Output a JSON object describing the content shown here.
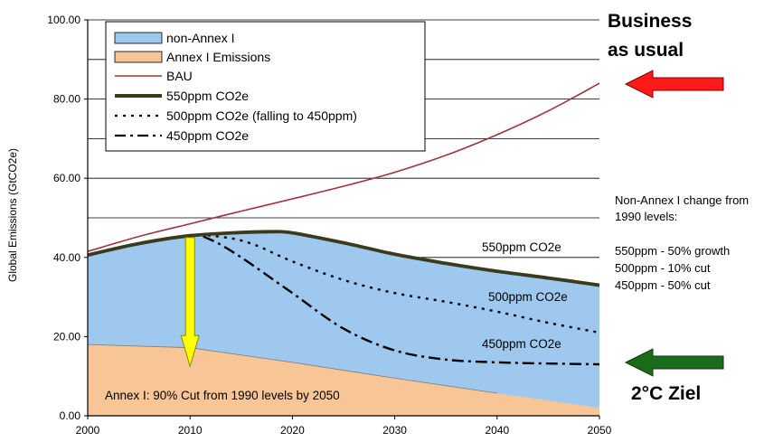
{
  "chart_data": {
    "type": "area",
    "title": "",
    "xlabel": "",
    "ylabel": "Global Emissions (GtCO2e)",
    "xlim": [
      2000,
      2050
    ],
    "ylim": [
      0,
      100
    ],
    "x_ticks": [
      "2000",
      "2010",
      "2020",
      "2030",
      "2040",
      "2050"
    ],
    "y_ticks": [
      "0.00",
      "20.00",
      "40.00",
      "60.00",
      "80.00",
      "100.00"
    ],
    "y_tick_values": [
      0,
      20,
      40,
      60,
      80,
      100
    ],
    "gridlines_y": [
      0,
      10,
      20,
      30,
      40,
      50,
      60,
      70,
      80,
      90,
      100
    ],
    "grid": true,
    "legend_position": "top-left",
    "series": [
      {
        "name": "Annex I Emissions",
        "kind": "area",
        "color": "#f8c596",
        "x": [
          2000,
          2010,
          2020,
          2030,
          2040,
          2050
        ],
        "y": [
          18,
          17.2,
          13.5,
          9.5,
          5.7,
          2
        ]
      },
      {
        "name": "non-Annex I",
        "kind": "area",
        "color": "#9ec8ee",
        "x": [
          2000,
          2005,
          2010,
          2015,
          2018,
          2020,
          2025,
          2030,
          2035,
          2040,
          2045,
          2050
        ],
        "y": [
          40.6,
          43.5,
          45.5,
          46.3,
          46.5,
          46.2,
          43.7,
          40.8,
          38.5,
          36.5,
          34.8,
          33
        ]
      },
      {
        "name": "BAU",
        "kind": "line",
        "color": "#a0323c",
        "x": [
          2000,
          2005,
          2010,
          2015,
          2020,
          2025,
          2030,
          2035,
          2040,
          2045,
          2050
        ],
        "y": [
          41.5,
          45.3,
          48.5,
          51.7,
          54.8,
          58,
          61.5,
          65.8,
          71,
          77,
          84
        ]
      },
      {
        "name": "550ppm CO2e",
        "kind": "line",
        "color": "#3a3a1c",
        "x": [
          2000,
          2005,
          2010,
          2015,
          2018,
          2020,
          2025,
          2030,
          2035,
          2040,
          2045,
          2050
        ],
        "y": [
          40.6,
          43.5,
          45.5,
          46.3,
          46.5,
          46.2,
          43.7,
          40.8,
          38.5,
          36.5,
          34.8,
          33
        ]
      },
      {
        "name": "500ppm CO2e (falling to 450ppm)",
        "kind": "line",
        "color": "#000000",
        "x": [
          2000,
          2005,
          2010,
          2013,
          2016,
          2020,
          2025,
          2030,
          2035,
          2040,
          2045,
          2050
        ],
        "y": [
          40.6,
          43.5,
          45.5,
          45.2,
          43.5,
          39,
          34.3,
          31,
          28.8,
          26.3,
          23.5,
          21
        ]
      },
      {
        "name": "450ppm CO2e",
        "kind": "line",
        "color": "#000000",
        "x": [
          2000,
          2005,
          2010,
          2012,
          2015,
          2020,
          2025,
          2030,
          2035,
          2040,
          2045,
          2050
        ],
        "y": [
          40.6,
          43.5,
          45.5,
          44.5,
          40,
          31,
          22,
          16.5,
          14.2,
          13.5,
          13.2,
          13
        ]
      }
    ],
    "legend_entries": [
      "non-Annex I",
      "Annex I Emissions",
      "BAU",
      "550ppm CO2e",
      "500ppm CO2e (falling to 450ppm)",
      "450ppm CO2e"
    ],
    "arrow_down": {
      "x": 2010,
      "from": 45.5,
      "to": 12.5,
      "color": "#ffff00"
    },
    "annotations": {
      "label_550": "550ppm CO2e",
      "label_500": "500ppm CO2e",
      "label_450": "450ppm CO2e",
      "annex_note": "Annex I: 90% Cut from 1990 levels by 2050",
      "side_note_line1": "Non-Annex I change from",
      "side_note_line2": "1990 levels:",
      "side_note_line3": "550ppm - 50% growth",
      "side_note_line4": "500ppm - 10% cut",
      "side_note_line5": "450ppm - 50% cut",
      "bau_line1": "Business",
      "bau_line2": "as usual",
      "goal": "2°C Ziel"
    },
    "arrow_colors": {
      "red": "#ff1a1a",
      "green": "#1a6b1a"
    }
  }
}
